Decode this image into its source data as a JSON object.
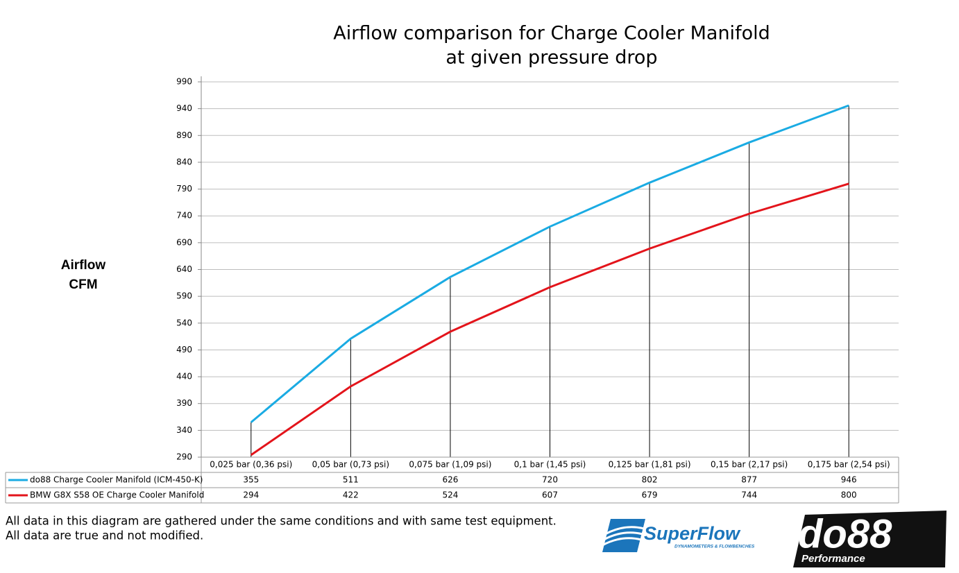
{
  "chart_data": {
    "type": "line",
    "title": [
      "Airflow comparison for Charge Cooler Manifold",
      "at given pressure drop"
    ],
    "y_label": [
      "Airflow",
      "CFM"
    ],
    "categories": [
      "0,025 bar (0,36 psi)",
      "0,05 bar (0,73 psi)",
      "0,075 bar (1,09 psi)",
      "0,1 bar (1,45 psi)",
      "0,125 bar (1,81 psi)",
      "0,15 bar (2,17 psi)",
      "0,175 bar (2,54 psi)"
    ],
    "series": [
      {
        "name": "do88 Charge Cooler Manifold (ICM-450-K)",
        "color": "#1aabe3",
        "values": [
          355,
          511,
          626,
          720,
          802,
          877,
          946
        ]
      },
      {
        "name": "BMW G8X S58 OE Charge Cooler Manifold",
        "color": "#e3141b",
        "values": [
          294,
          422,
          524,
          607,
          679,
          744,
          800
        ]
      }
    ],
    "ylim": [
      290,
      990
    ],
    "yticks": [
      290,
      340,
      390,
      440,
      490,
      540,
      590,
      640,
      690,
      740,
      790,
      840,
      890,
      940,
      990
    ],
    "grid": true,
    "drop_lines": true,
    "data_table": true
  },
  "footer": {
    "notes": [
      "All data in this diagram are gathered under the same conditions and with same test equipment.",
      "All data are true and not modified."
    ],
    "logos": {
      "superflow": "SuperFlow",
      "superflow_tagline": "DYNAMOMETERS & FLOWBENCHES",
      "do88": "do88",
      "do88_tagline": "Performance"
    }
  }
}
